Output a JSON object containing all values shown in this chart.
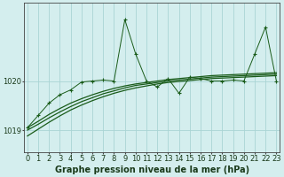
{
  "title": "",
  "xlabel": "Graphe pression niveau de la mer (hPa)",
  "background_color": "#d4eeee",
  "grid_color": "#aad4d4",
  "line_color": "#1a5c1a",
  "x_ticks": [
    0,
    1,
    2,
    3,
    4,
    5,
    6,
    7,
    8,
    9,
    10,
    11,
    12,
    13,
    14,
    15,
    16,
    17,
    18,
    19,
    20,
    21,
    22,
    23
  ],
  "y_ticks": [
    1019,
    1020
  ],
  "ylim": [
    1018.55,
    1021.6
  ],
  "xlim": [
    -0.3,
    23.3
  ],
  "main_data": [
    1019.05,
    1019.3,
    1019.55,
    1019.72,
    1019.82,
    1019.98,
    1020.0,
    1020.02,
    1020.0,
    1021.25,
    1020.55,
    1020.0,
    1019.88,
    1020.05,
    1019.75,
    1020.08,
    1020.05,
    1020.0,
    1020.0,
    1020.02,
    1020.0,
    1020.55,
    1021.1,
    1020.0
  ],
  "smooth1": [
    1019.05,
    1019.18,
    1019.32,
    1019.44,
    1019.55,
    1019.64,
    1019.72,
    1019.79,
    1019.85,
    1019.9,
    1019.94,
    1019.97,
    1020.0,
    1020.03,
    1020.05,
    1020.07,
    1020.09,
    1020.11,
    1020.12,
    1020.13,
    1020.14,
    1020.15,
    1020.16,
    1020.17
  ],
  "smooth2": [
    1019.0,
    1019.12,
    1019.25,
    1019.37,
    1019.48,
    1019.58,
    1019.66,
    1019.74,
    1019.8,
    1019.86,
    1019.91,
    1019.94,
    1019.97,
    1020.0,
    1020.02,
    1020.04,
    1020.06,
    1020.08,
    1020.09,
    1020.1,
    1020.11,
    1020.12,
    1020.13,
    1020.14
  ],
  "smooth3": [
    1018.88,
    1019.02,
    1019.16,
    1019.29,
    1019.41,
    1019.51,
    1019.6,
    1019.68,
    1019.75,
    1019.81,
    1019.86,
    1019.9,
    1019.94,
    1019.97,
    1019.99,
    1020.01,
    1020.03,
    1020.05,
    1020.06,
    1020.07,
    1020.08,
    1020.09,
    1020.1,
    1020.11
  ],
  "xlabel_fontsize": 7,
  "tick_fontsize": 6
}
